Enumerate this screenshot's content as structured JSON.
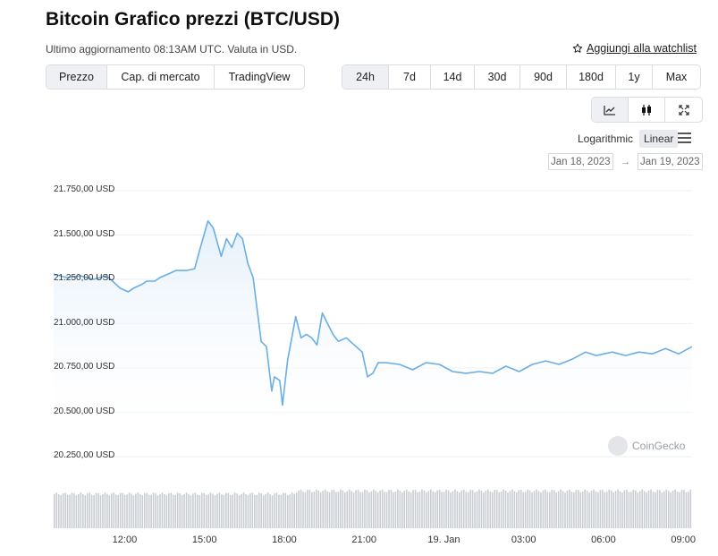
{
  "header": {
    "title": "Bitcoin Grafico prezzi (BTC/USD)",
    "subtitle": "Ultimo aggiornamento 08:13AM UTC. Valuta in USD.",
    "watchlist_label": "Aggiungi alla watchlist"
  },
  "tabs": [
    "Prezzo",
    "Cap. di mercato",
    "TradingView"
  ],
  "ranges": [
    "24h",
    "7d",
    "14d",
    "30d",
    "90d",
    "180d",
    "1y",
    "Max"
  ],
  "scale": {
    "log_label": "Logarithmic",
    "linear_label": "Linear"
  },
  "date_range": {
    "from": "Jan 18, 2023",
    "arrow": "→",
    "to": "Jan 19, 2023"
  },
  "watermark": "CoinGecko",
  "colors": {
    "line": "#6aaee6",
    "fill": "#e4f0fb",
    "volume": "#c9cdd2",
    "grid": "#eef0f2"
  },
  "chart_data": {
    "type": "area",
    "title": "Bitcoin Grafico prezzi (BTC/USD)",
    "y_tick_labels": [
      "21.750,00 USD",
      "21.500,00 USD",
      "21.250,00 USD",
      "21.000,00 USD",
      "20.750,00 USD",
      "20.500,00 USD",
      "20.250,00 USD"
    ],
    "y_ticks": [
      21750,
      21500,
      21250,
      21000,
      20750,
      20500,
      20250
    ],
    "ylim": [
      20250,
      21750
    ],
    "x_tick_labels": [
      "12:00",
      "15:00",
      "18:00",
      "21:00",
      "19. Jan",
      "03:00",
      "06:00",
      "09:00"
    ],
    "x_ticks": [
      2.67,
      5.67,
      8.67,
      11.67,
      14.67,
      17.67,
      20.67,
      23.67
    ],
    "x_unit": "hours since 09:20 Jan 18, 2023",
    "xlim": [
      0,
      24
    ],
    "series": [
      {
        "name": "BTC/USD",
        "x": [
          0,
          0.5,
          1,
          1.5,
          2,
          2.5,
          2.8,
          3,
          3.3,
          3.5,
          3.8,
          4,
          4.3,
          4.6,
          5,
          5.3,
          5.5,
          5.8,
          6,
          6.3,
          6.5,
          6.7,
          6.9,
          7.1,
          7.3,
          7.5,
          7.8,
          8,
          8.2,
          8.3,
          8.5,
          8.6,
          8.8,
          8.9,
          9.1,
          9.3,
          9.5,
          9.7,
          9.9,
          10.1,
          10.3,
          10.5,
          10.7,
          11,
          11.3,
          11.6,
          11.8,
          12,
          12.2,
          12.5,
          13,
          13.5,
          14,
          14.5,
          15,
          15.5,
          16,
          16.5,
          17,
          17.5,
          18,
          18.5,
          19,
          19.5,
          20,
          20.4,
          21,
          21.5,
          22,
          22.5,
          23,
          23.5,
          24
        ],
        "values": [
          21280,
          21260,
          21270,
          21250,
          21270,
          21200,
          21180,
          21200,
          21220,
          21240,
          21240,
          21260,
          21280,
          21300,
          21300,
          21310,
          21420,
          21580,
          21540,
          21380,
          21480,
          21430,
          21510,
          21480,
          21340,
          21260,
          20900,
          20870,
          20620,
          20700,
          20680,
          20540,
          20800,
          20880,
          21040,
          20920,
          20940,
          20920,
          20880,
          21060,
          21000,
          20940,
          20900,
          20920,
          20880,
          20840,
          20700,
          20720,
          20780,
          20780,
          20770,
          20740,
          20780,
          20770,
          20730,
          20720,
          20730,
          20720,
          20760,
          20730,
          20770,
          20790,
          20770,
          20800,
          20840,
          20820,
          20840,
          20820,
          20840,
          20830,
          20860,
          20830,
          20870
        ]
      }
    ],
    "volume": {
      "name": "Volume",
      "level": 0.62
    }
  }
}
